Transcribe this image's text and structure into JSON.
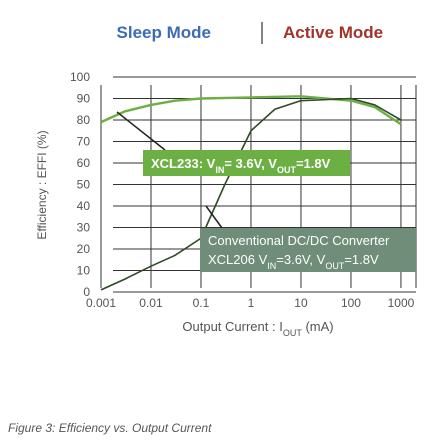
{
  "chart_data": {
    "type": "line",
    "title_parts": [
      "Sleep Mode",
      "Active Mode"
    ],
    "title_colors": [
      "#3b6cb4",
      "#a3322b"
    ],
    "xlabel_parts": [
      "Output Current : I",
      "OUT",
      " (mA)"
    ],
    "ylabel": "Efficiency : EFFI (%)",
    "caption": "Figure 3: Efficiency vs. Output Current",
    "xscale": "log",
    "xlim": [
      0.001,
      2000
    ],
    "xticks": [
      0.001,
      0.01,
      0.1,
      1,
      10,
      100,
      1000
    ],
    "ylim": [
      0,
      100
    ],
    "yticks": [
      0,
      10,
      20,
      30,
      40,
      50,
      60,
      70,
      80,
      90,
      100
    ],
    "grid": true,
    "series": [
      {
        "color": "#6cb044",
        "x": [
          0.001,
          0.003,
          0.01,
          0.03,
          0.1,
          1,
          10,
          100,
          300,
          1000
        ],
        "values": [
          79,
          84,
          87,
          89,
          90,
          90.5,
          91,
          89,
          86,
          78
        ]
      },
      {
        "color": "#2e4a26",
        "x": [
          0.001,
          0.003,
          0.01,
          0.03,
          0.1,
          0.3,
          1,
          3,
          10,
          100,
          300,
          1000
        ],
        "values": [
          1,
          6,
          12,
          17,
          25,
          50,
          75,
          85,
          89,
          90,
          87,
          80
        ]
      }
    ],
    "annotations": [
      {
        "parts": [
          "XCL233: V",
          "IN",
          "= 3.6V, V",
          "OUT",
          "=1.8V"
        ],
        "color": "#6cb044"
      },
      {
        "title": "Conventional DC/DC Converter",
        "parts": [
          "XCL206 V",
          "IN",
          "=3.6V, V",
          "OUT",
          "=1.8V"
        ],
        "color": "#6f8d78"
      }
    ]
  }
}
